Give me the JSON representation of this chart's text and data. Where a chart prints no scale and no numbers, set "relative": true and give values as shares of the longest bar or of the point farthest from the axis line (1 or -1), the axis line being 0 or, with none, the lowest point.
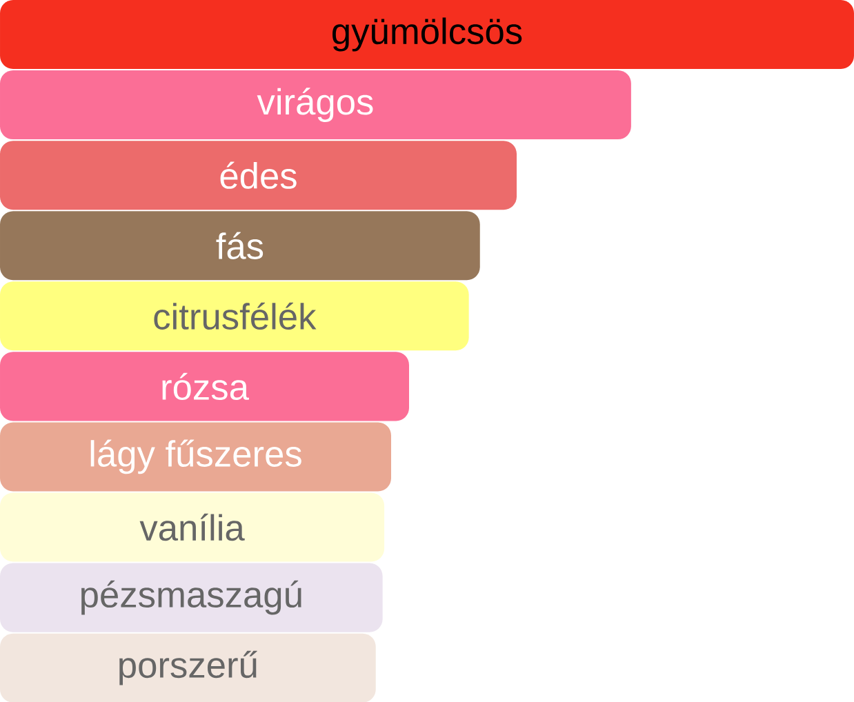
{
  "chart_data": {
    "type": "bar",
    "orientation": "horizontal",
    "relative": true,
    "categories": [
      "gyümölcsös",
      "virágos",
      "édes",
      "fás",
      "citrusfélék",
      "rózsa",
      "lágy fűszeres",
      "vanília",
      "pézsmaszagú",
      "porszerű"
    ],
    "values": [
      1,
      0.739,
      0.605,
      0.562,
      0.549,
      0.479,
      0.458,
      0.45,
      0.448,
      0.44
    ],
    "colors": [
      "#f52f1f",
      "#fb6e96",
      "#ec6b6b",
      "#96775a",
      "#ffff7f",
      "#fb6e96",
      "#e9a893",
      "#fffdd7",
      "#ebe3ef",
      "#f2e6de"
    ]
  }
}
